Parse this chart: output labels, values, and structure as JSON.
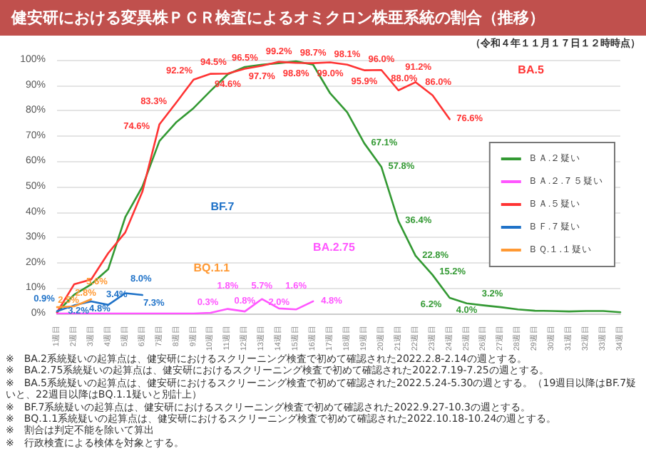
{
  "chart_data": {
    "type": "line",
    "title": "健安研における変異株ＰＣＲ検査によるオミクロン株亜系統の割合（推移）",
    "subtitle": "（令和４年１１月１７日１２時時点）",
    "categories": [
      "1週目",
      "2週目",
      "3週目",
      "4週目",
      "5週目",
      "6週目",
      "7週目",
      "8週目",
      "9週目",
      "10週目",
      "11週目",
      "12週目",
      "13週目",
      "14週目",
      "15週目",
      "16週目",
      "17週目",
      "18週目",
      "19週目",
      "20週目",
      "21週目",
      "22週目",
      "23週目",
      "24週目",
      "25週目",
      "26週目",
      "27週目",
      "28週目",
      "29週目",
      "30週目",
      "31週目",
      "32週目",
      "33週目",
      "34週目"
    ],
    "series": [
      {
        "name": "ＢＡ.２疑い",
        "color": "#339933",
        "values": [
          0.5,
          7.4,
          11.5,
          17.5,
          38,
          50,
          68,
          75.5,
          81,
          87.8,
          94.3,
          97.2,
          98.1,
          98.7,
          99.4,
          98.1,
          86.8,
          79.3,
          67.1,
          57.8,
          36.4,
          22.8,
          15.2,
          6.2,
          4.0,
          3.2,
          2.5,
          1.6,
          1.1,
          1.0,
          0.8,
          1.0,
          1.0,
          0.5
        ],
        "value_labels": [
          null,
          null,
          null,
          null,
          null,
          null,
          null,
          null,
          null,
          null,
          null,
          null,
          null,
          null,
          null,
          null,
          null,
          null,
          "67.1%",
          "57.8%",
          "36.4%",
          "22.8%",
          "15.2%",
          "6.2%",
          "4.0%",
          "3.2%",
          null,
          null,
          null,
          null,
          null,
          null,
          null,
          null
        ]
      },
      {
        "name": "ＢＡ.２.７５疑い",
        "color": "#ff55ff",
        "values": [
          0,
          0,
          0,
          0,
          0,
          0,
          0,
          0,
          0,
          0.3,
          1.8,
          0.8,
          5.7,
          2.0,
          1.6,
          4.8,
          null,
          null,
          null,
          null,
          null,
          null,
          null,
          null,
          null,
          null,
          null,
          null,
          null,
          null,
          null,
          null,
          null,
          null
        ],
        "value_labels": [
          null,
          null,
          null,
          null,
          null,
          null,
          null,
          null,
          null,
          "0.3%",
          "1.8%",
          "0.8%",
          "5.7%",
          "2.0%",
          "1.6%",
          "4.8%",
          null,
          null,
          null,
          null,
          null,
          null,
          null,
          null,
          null,
          null,
          null,
          null,
          null,
          null,
          null,
          null,
          null,
          null
        ]
      },
      {
        "name": "ＢＡ.５疑い",
        "color": "#ff3333",
        "values": [
          0.5,
          11.5,
          13.4,
          23.8,
          32,
          48,
          74.6,
          83.3,
          92.2,
          94.5,
          94.6,
          96.5,
          97.7,
          99.2,
          98.8,
          98.7,
          99.0,
          98.1,
          95.9,
          96.0,
          88.0,
          91.2,
          86.0,
          76.6,
          null,
          null,
          null,
          null,
          null,
          null,
          null,
          null,
          null,
          null
        ],
        "value_labels": [
          null,
          null,
          null,
          null,
          null,
          null,
          "74.6%",
          "83.3%",
          "92.2%",
          "94.5%",
          "94.6%",
          "96.5%",
          "97.7%",
          "99.2%",
          "98.8%",
          "98.7%",
          "99.0%",
          "98.1%",
          "95.9%",
          "96.0%",
          "88.0%",
          "91.2%",
          "86.0%",
          "76.6%",
          null,
          null,
          null,
          null,
          null,
          null,
          null,
          null,
          null,
          null
        ]
      },
      {
        "name": "ＢＦ.７疑い",
        "color": "#1f72c8",
        "values": [
          0.9,
          3.2,
          4.8,
          3.4,
          8.0,
          7.3,
          null,
          null,
          null,
          null,
          null,
          null,
          null,
          null,
          null,
          null,
          null,
          null,
          null,
          null,
          null,
          null,
          null,
          null,
          null,
          null,
          null,
          null,
          null,
          null,
          null,
          null,
          null,
          null
        ],
        "value_labels": [
          "0.9%",
          "3.2%",
          "4.8%",
          "3.4%",
          "8.0%",
          "7.3%",
          null,
          null,
          null,
          null,
          null,
          null,
          null,
          null,
          null,
          null,
          null,
          null,
          null,
          null,
          null,
          null,
          null,
          null,
          null,
          null,
          null,
          null,
          null,
          null,
          null,
          null,
          null,
          null
        ]
      },
      {
        "name": "ＢＱ.１.１疑い",
        "color": "#ff9933",
        "values": [
          2.5,
          2.8,
          5.6,
          null,
          null,
          null,
          null,
          null,
          null,
          null,
          null,
          null,
          null,
          null,
          null,
          null,
          null,
          null,
          null,
          null,
          null,
          null,
          null,
          null,
          null,
          null,
          null,
          null,
          null,
          null,
          null,
          null,
          null,
          null
        ],
        "value_labels": [
          "2.5%",
          "2.8%",
          "5.6%",
          null,
          null,
          null,
          null,
          null,
          null,
          null,
          null,
          null,
          null,
          null,
          null,
          null,
          null,
          null,
          null,
          null,
          null,
          null,
          null,
          null,
          null,
          null,
          null,
          null,
          null,
          null,
          null,
          null,
          null,
          null
        ]
      }
    ],
    "ylim": [
      0,
      100
    ],
    "yticks": [
      {
        "value": 0,
        "label": "0%"
      },
      {
        "value": 10,
        "label": "10%"
      },
      {
        "value": 20,
        "label": "20%"
      },
      {
        "value": 30,
        "label": "30%"
      },
      {
        "value": 40,
        "label": "40%"
      },
      {
        "value": 50,
        "label": "50%"
      },
      {
        "value": 60,
        "label": "60%"
      },
      {
        "value": 70,
        "label": "70%"
      },
      {
        "value": 80,
        "label": "80%"
      },
      {
        "value": 90,
        "label": "90%"
      },
      {
        "value": 100,
        "label": "100%"
      }
    ],
    "grid": "y",
    "legend": "right",
    "marker": "none",
    "line_style": "solid",
    "annotations": [
      "BA.5",
      "BF.7",
      "BQ.1.1",
      "BA.2.75",
      "※　BA.2系統疑いの起算点は、健安研におけるスクリーニング検査で初めて確認された2022.2.8-2.14の週とする。",
      "※　BA.2.75系統疑いの起算点は、健安研におけるスクリーニング検査で初めて確認された2022.7.19-7.25の週とする。",
      "※　BA.5系統疑いの起算点は、健安研におけるスクリーニング検査で初めて確認された2022.5.24-5.30の週とする。（19週目以降はBF.7疑いと、22週目以降はBQ.1.1疑いと別計上）",
      "※　BF.7系統疑いの起算点は、健安研におけるスクリーニング検査で初めて確認された2022.9.27-10.3の週とする。",
      "※　BQ.1.1系統疑いの起算点は、健安研におけるスクリーニング検査で初めて確認された2022.10.18-10.24の週とする。",
      "※　割合は判定不能を除いて算出",
      "※　行政検査による検体を対象とする。"
    ]
  }
}
